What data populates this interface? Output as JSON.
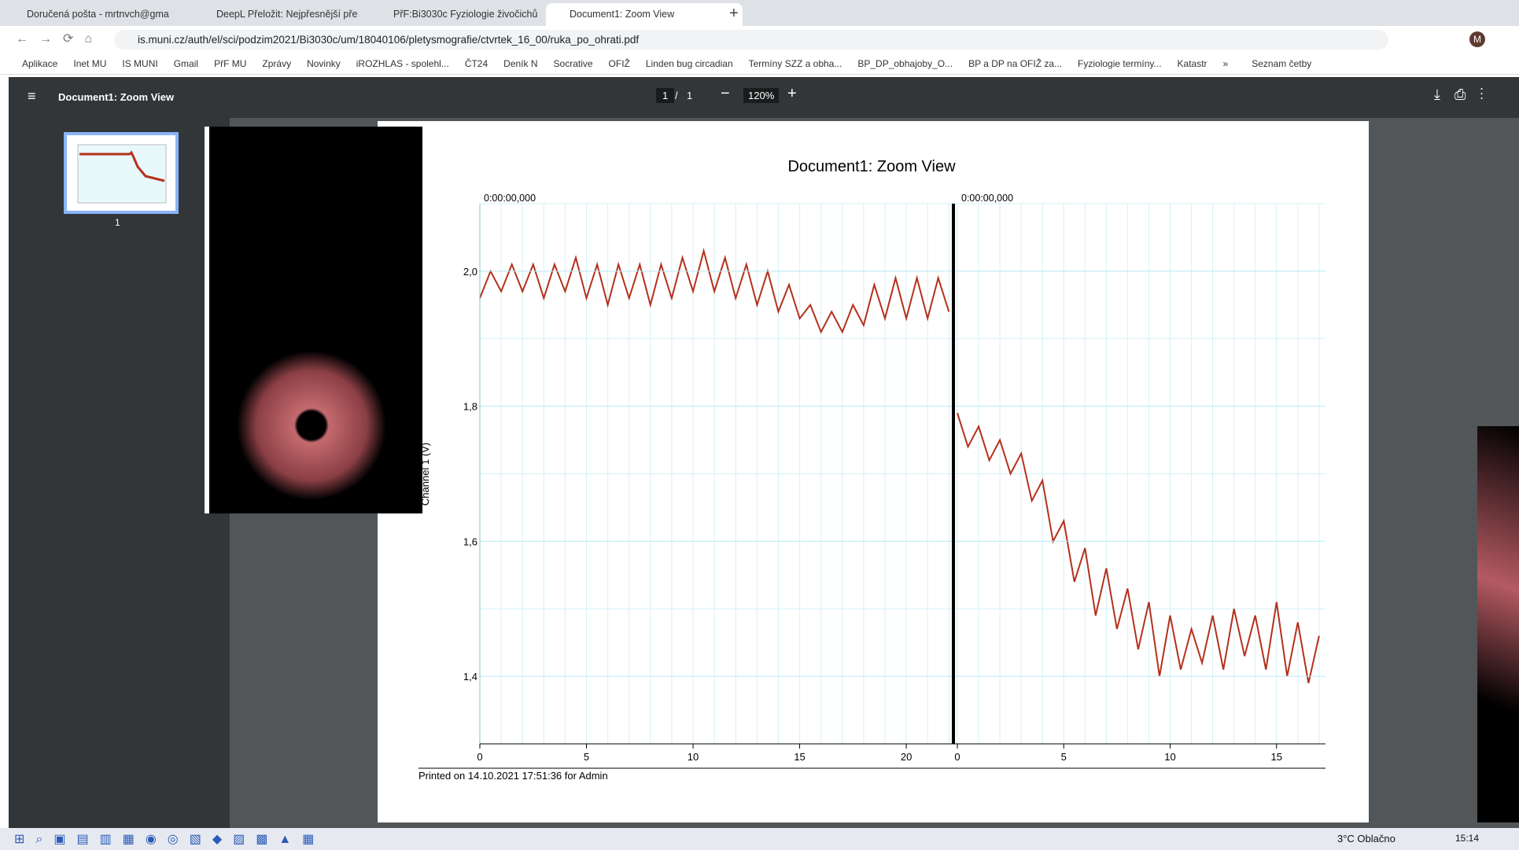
{
  "browser": {
    "tabs": [
      "Doručená pošta - mrtnvch@gma",
      "DeepL Přeložit: Nejpřesnější pře",
      "PřF:Bi3030c Fyziologie živočichů",
      "Document1: Zoom View"
    ],
    "url": "is.muni.cz/auth/el/sci/podzim2021/Bi3030c/um/18040106/pletysmografie/ctvrtek_16_00/ruka_po_ohrati.pdf",
    "bookmarks": [
      "Aplikace",
      "Inet MU",
      "IS MUNI",
      "Gmail",
      "PřF MU",
      "Zprávy",
      "Novinky",
      "iROZHLAS - spolehl...",
      "ČT24",
      "Deník N",
      "Socrative",
      "OFIŽ",
      "Linden bug circadian",
      "Termíny SZZ a obha...",
      "BP_DP_obhajoby_O...",
      "BP a DP na OFIŽ za...",
      "Fyziologie termíny...",
      "Katastr"
    ],
    "more": "»",
    "reading_list": "Seznam četby",
    "profile": "M"
  },
  "viewer": {
    "title": "Document1: Zoom View",
    "page": "1",
    "page_sep": "/",
    "pages": "1",
    "zoom": "120%",
    "thumbnail_label": "1"
  },
  "chart_data": {
    "type": "line",
    "title": "Document1: Zoom View",
    "y_label": "Channel 1 (V)",
    "footer": "Printed on 14.10.2021 17:51:36 for Admin",
    "ylim": [
      1.3,
      2.1
    ],
    "yticks": [
      {
        "value": 1.4,
        "label": "1,4"
      },
      {
        "value": 1.6,
        "label": "1,6"
      },
      {
        "value": 1.8,
        "label": "1,8"
      },
      {
        "value": 2.0,
        "label": "2,0"
      }
    ],
    "grid": true,
    "panels": [
      {
        "x_label": "0:00:00,000",
        "xlim": [
          0,
          22.1
        ],
        "xticks": [
          0,
          5,
          10,
          15,
          20
        ],
        "series": [
          {
            "color": "#b5301c",
            "x": [
              0,
              0.5,
              1,
              1.5,
              2,
              2.5,
              3,
              3.5,
              4,
              4.5,
              5,
              5.5,
              6,
              6.5,
              7,
              7.5,
              8,
              8.5,
              9,
              9.5,
              10,
              10.5,
              11,
              11.5,
              12,
              12.5,
              13,
              13.5,
              14,
              14.5,
              15,
              15.5,
              16,
              16.5,
              17,
              17.5,
              18,
              18.5,
              19,
              19.5,
              20,
              20.5,
              21,
              21.5,
              22
            ],
            "values": [
              1.96,
              2.0,
              1.97,
              2.01,
              1.97,
              2.01,
              1.96,
              2.01,
              1.97,
              2.02,
              1.96,
              2.01,
              1.95,
              2.01,
              1.96,
              2.01,
              1.95,
              2.01,
              1.96,
              2.02,
              1.97,
              2.03,
              1.97,
              2.02,
              1.96,
              2.01,
              1.95,
              2.0,
              1.94,
              1.98,
              1.93,
              1.95,
              1.91,
              1.94,
              1.91,
              1.95,
              1.92,
              1.98,
              1.93,
              1.99,
              1.93,
              1.99,
              1.93,
              1.99,
              1.94
            ]
          }
        ]
      },
      {
        "x_label": "0:00:00,000",
        "xlim": [
          0,
          17.3
        ],
        "xticks": [
          0,
          5,
          10,
          15
        ],
        "series": [
          {
            "color": "#b5301c",
            "x": [
              0,
              0.5,
              1,
              1.5,
              2,
              2.5,
              3,
              3.5,
              4,
              4.5,
              5,
              5.5,
              6,
              6.5,
              7,
              7.5,
              8,
              8.5,
              9,
              9.5,
              10,
              10.5,
              11,
              11.5,
              12,
              12.5,
              13,
              13.5,
              14,
              14.5,
              15,
              15.5,
              16,
              16.5,
              17
            ],
            "values": [
              1.79,
              1.74,
              1.77,
              1.72,
              1.75,
              1.7,
              1.73,
              1.66,
              1.69,
              1.6,
              1.63,
              1.54,
              1.59,
              1.49,
              1.56,
              1.47,
              1.53,
              1.44,
              1.51,
              1.4,
              1.49,
              1.41,
              1.47,
              1.42,
              1.49,
              1.41,
              1.5,
              1.43,
              1.49,
              1.41,
              1.51,
              1.4,
              1.48,
              1.39,
              1.46
            ]
          }
        ]
      }
    ]
  },
  "taskbar": {
    "weather": "3°C Oblačno",
    "time": "15:14"
  }
}
